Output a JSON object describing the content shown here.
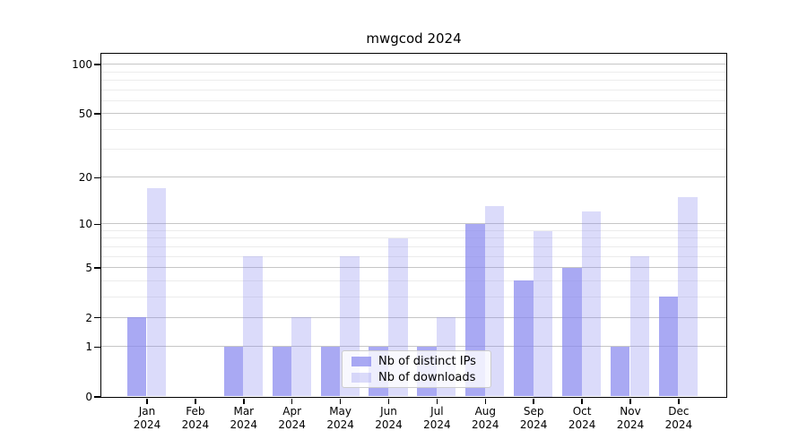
{
  "chart_data": {
    "type": "bar",
    "title": "mwgcod 2024",
    "categories": [
      "Jan\n2024",
      "Feb\n2024",
      "Mar\n2024",
      "Apr\n2024",
      "May\n2024",
      "Jun\n2024",
      "Jul\n2024",
      "Aug\n2024",
      "Sep\n2024",
      "Oct\n2024",
      "Nov\n2024",
      "Dec\n2024"
    ],
    "series": [
      {
        "name": "Nb of distinct IPs",
        "values": [
          2,
          0,
          1,
          1,
          1,
          1,
          1,
          10,
          4,
          5,
          1,
          3
        ]
      },
      {
        "name": "Nb of downloads",
        "values": [
          17,
          0,
          6,
          2,
          6,
          8,
          2,
          13,
          9,
          12,
          6,
          15
        ]
      }
    ],
    "ytick_values": [
      0,
      1,
      2,
      5,
      10,
      20,
      50,
      100
    ],
    "ytick_labels": [
      "0",
      "1",
      "2",
      "5",
      "10",
      "20",
      "50",
      "100"
    ],
    "minor_gridline_values": [
      3,
      4,
      6,
      7,
      8,
      9,
      30,
      40,
      60,
      70,
      80,
      90
    ],
    "scale": "log1p",
    "ylim": [
      0,
      117
    ],
    "grid": true,
    "legend_position": "lower center inside plot",
    "xlabel": "",
    "ylabel": ""
  },
  "colors": {
    "bar_base": "#8888ee",
    "bar_ips_rgba": "rgba(136,136,238,0.72)",
    "bar_downloads_rgba": "rgba(136,136,238,0.30)",
    "grid_major": "#c6c6c6",
    "grid_minor": "#ececec",
    "spine": "#000000",
    "background": "#ffffff"
  }
}
